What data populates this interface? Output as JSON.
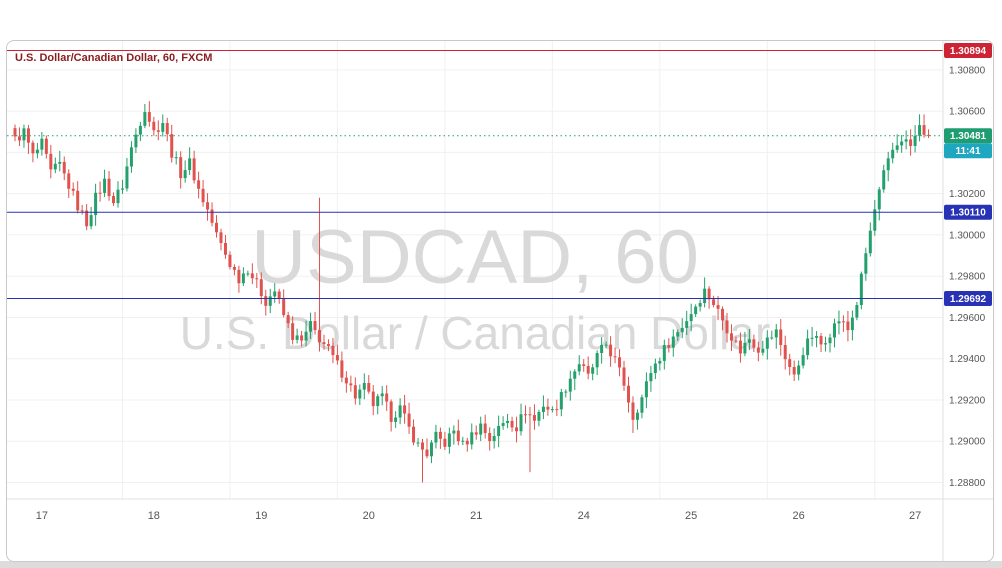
{
  "header": {
    "symbol_title": "U.S. Dollar/Canadian Dollar, 60, FXCM",
    "title_color": "#8b1e20"
  },
  "watermark": {
    "line1": "USDCAD, 60",
    "line2": "U.S. Dollar / Canadian Dollar"
  },
  "chart_data": {
    "type": "candlestick",
    "symbol": "USDCAD",
    "interval": "60",
    "exchange": "FXCM",
    "title": "U.S. Dollar/Canadian Dollar, 60, FXCM",
    "y_range": [
      1.2872,
      1.3094
    ],
    "y_ticks": [
      "1.30800",
      "1.30600",
      "1.30400",
      "1.30200",
      "1.30000",
      "1.29800",
      "1.29600",
      "1.29400",
      "1.29200",
      "1.29000",
      "1.28800"
    ],
    "x_day_labels": [
      {
        "label": "17",
        "bar": 6
      },
      {
        "label": "18",
        "bar": 31
      },
      {
        "label": "19",
        "bar": 55
      },
      {
        "label": "20",
        "bar": 79
      },
      {
        "label": "21",
        "bar": 103
      },
      {
        "label": "24",
        "bar": 127
      },
      {
        "label": "25",
        "bar": 151
      },
      {
        "label": "26",
        "bar": 175
      },
      {
        "label": "27",
        "bar": 201
      }
    ],
    "day_start_bars": [
      24,
      48,
      72,
      96,
      120,
      144,
      168,
      192
    ],
    "bars_total": 205,
    "anchors": [
      [
        0,
        1.3046
      ],
      [
        2,
        1.305
      ],
      [
        4,
        1.3038
      ],
      [
        6,
        1.3044
      ],
      [
        8,
        1.303
      ],
      [
        10,
        1.3034
      ],
      [
        12,
        1.3024
      ],
      [
        14,
        1.3014
      ],
      [
        16,
        1.3006
      ],
      [
        18,
        1.3018
      ],
      [
        20,
        1.3026
      ],
      [
        22,
        1.3016
      ],
      [
        24,
        1.3024
      ],
      [
        26,
        1.3042
      ],
      [
        29,
        1.3062
      ],
      [
        31,
        1.305
      ],
      [
        33,
        1.3055
      ],
      [
        35,
        1.304
      ],
      [
        37,
        1.303
      ],
      [
        39,
        1.3035
      ],
      [
        41,
        1.3022
      ],
      [
        43,
        1.3012
      ],
      [
        45,
        1.3
      ],
      [
        48,
        1.2986
      ],
      [
        50,
        1.2979
      ],
      [
        52,
        1.2984
      ],
      [
        54,
        1.2976
      ],
      [
        56,
        1.2968
      ],
      [
        58,
        1.2973
      ],
      [
        60,
        1.2961
      ],
      [
        62,
        1.2951
      ],
      [
        64,
        1.2948
      ],
      [
        66,
        1.2956
      ],
      [
        68,
        1.295
      ],
      [
        70,
        1.2944
      ],
      [
        72,
        1.2937
      ],
      [
        74,
        1.293
      ],
      [
        76,
        1.2922
      ],
      [
        78,
        1.2926
      ],
      [
        80,
        1.2918
      ],
      [
        82,
        1.2921
      ],
      [
        84,
        1.2912
      ],
      [
        86,
        1.2916
      ],
      [
        88,
        1.2906
      ],
      [
        90,
        1.2898
      ],
      [
        92,
        1.2894
      ],
      [
        94,
        1.2902
      ],
      [
        96,
        1.2899
      ],
      [
        98,
        1.2905
      ],
      [
        100,
        1.2898
      ],
      [
        102,
        1.2903
      ],
      [
        104,
        1.2908
      ],
      [
        106,
        1.2901
      ],
      [
        108,
        1.2906
      ],
      [
        110,
        1.2911
      ],
      [
        112,
        1.2907
      ],
      [
        114,
        1.2915
      ],
      [
        116,
        1.291
      ],
      [
        118,
        1.2918
      ],
      [
        120,
        1.2914
      ],
      [
        122,
        1.2922
      ],
      [
        124,
        1.2931
      ],
      [
        126,
        1.2938
      ],
      [
        128,
        1.2931
      ],
      [
        130,
        1.2941
      ],
      [
        132,
        1.2947
      ],
      [
        134,
        1.2939
      ],
      [
        136,
        1.2928
      ],
      [
        138,
        1.2912
      ],
      [
        140,
        1.2921
      ],
      [
        142,
        1.2934
      ],
      [
        144,
        1.2941
      ],
      [
        146,
        1.2948
      ],
      [
        148,
        1.2953
      ],
      [
        150,
        1.2959
      ],
      [
        152,
        1.2966
      ],
      [
        154,
        1.2973
      ],
      [
        156,
        1.2967
      ],
      [
        158,
        1.2959
      ],
      [
        160,
        1.2951
      ],
      [
        162,
        1.2944
      ],
      [
        164,
        1.295
      ],
      [
        166,
        1.2945
      ],
      [
        168,
        1.2949
      ],
      [
        170,
        1.2953
      ],
      [
        172,
        1.2941
      ],
      [
        174,
        1.2931
      ],
      [
        176,
        1.2944
      ],
      [
        178,
        1.2951
      ],
      [
        180,
        1.2947
      ],
      [
        182,
        1.2953
      ],
      [
        184,
        1.2959
      ],
      [
        186,
        1.2954
      ],
      [
        188,
        1.2967
      ],
      [
        190,
        1.2991
      ],
      [
        192,
        1.3012
      ],
      [
        194,
        1.3029
      ],
      [
        196,
        1.3041
      ],
      [
        198,
        1.3047
      ],
      [
        200,
        1.3043
      ],
      [
        202,
        1.3052
      ],
      [
        204,
        1.30481
      ]
    ],
    "wick_events": [
      {
        "bar": 68,
        "high": 1.3018
      },
      {
        "bar": 91,
        "low": 1.288
      },
      {
        "bar": 115,
        "low": 1.2885
      },
      {
        "bar": 138,
        "low": 1.2904
      }
    ],
    "levels": [
      {
        "name": "alert",
        "price": 1.30894,
        "label": "1.30894",
        "color": "#cc2434",
        "line": "solid"
      },
      {
        "name": "support-upper",
        "price": 1.3011,
        "label": "1.30110",
        "color": "#2832b4",
        "line": "solid"
      },
      {
        "name": "support-lower",
        "price": 1.29692,
        "label": "1.29692",
        "color": "#2832b4",
        "line": "solid"
      },
      {
        "name": "last-price",
        "price": 1.30481,
        "label": "1.30481",
        "color": "#1f9d71",
        "line": "dotted"
      }
    ],
    "last": {
      "price": 1.30481,
      "label": "1.30481",
      "countdown": "11:41",
      "countdown_color": "#1fa7c0"
    },
    "colors": {
      "up": "#23a06b",
      "down": "#e0524e",
      "grid": "#f0f0f0",
      "axis_text": "#555555",
      "watermark": "#d9d9d9",
      "border": "#e0e0e0"
    }
  }
}
